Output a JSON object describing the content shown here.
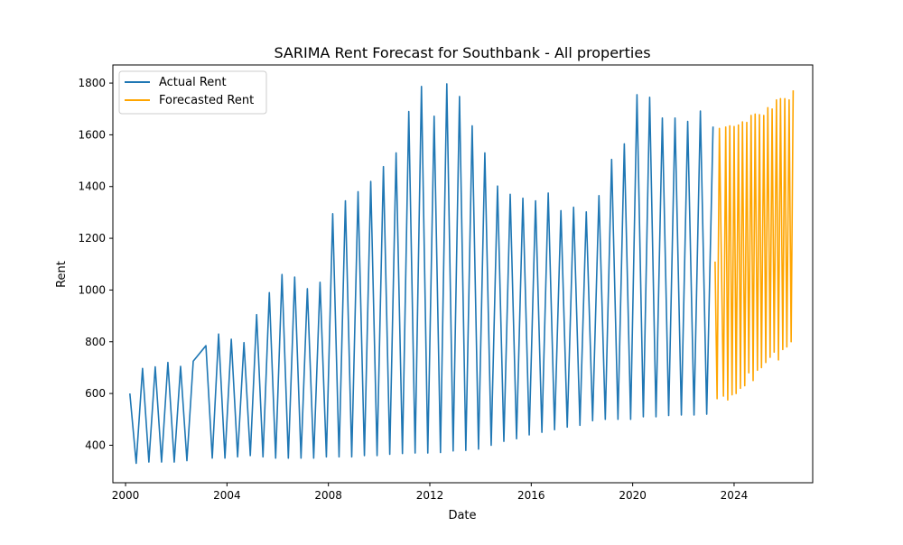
{
  "chart_data": {
    "type": "line",
    "title": "SARIMA Rent Forecast for Southbank - All properties",
    "xlabel": "Date",
    "ylabel": "Rent",
    "xlim": [
      1999.5,
      2027.1
    ],
    "ylim": [
      255,
      1870
    ],
    "xticks": [
      2000,
      2004,
      2008,
      2012,
      2016,
      2020,
      2024
    ],
    "xtick_labels": [
      "2000",
      "2004",
      "2008",
      "2012",
      "2016",
      "2020",
      "2024"
    ],
    "yticks": [
      400,
      600,
      800,
      1000,
      1200,
      1400,
      1600,
      1800
    ],
    "ytick_labels": [
      "400",
      "600",
      "800",
      "1000",
      "1200",
      "1400",
      "1600",
      "1800"
    ],
    "grid": false,
    "legend_position": "top-left",
    "series": [
      {
        "name": "Actual Rent",
        "color": "#1f77b4",
        "points": [
          [
            2000.17,
            600
          ],
          [
            2000.42,
            330
          ],
          [
            2000.67,
            697
          ],
          [
            2000.92,
            335
          ],
          [
            2001.17,
            703
          ],
          [
            2001.42,
            335
          ],
          [
            2001.67,
            720
          ],
          [
            2001.92,
            335
          ],
          [
            2002.17,
            705
          ],
          [
            2002.42,
            340
          ],
          [
            2002.67,
            725
          ],
          [
            2003.17,
            785
          ],
          [
            2003.42,
            350
          ],
          [
            2003.67,
            830
          ],
          [
            2003.92,
            350
          ],
          [
            2004.17,
            810
          ],
          [
            2004.42,
            355
          ],
          [
            2004.67,
            797
          ],
          [
            2004.92,
            360
          ],
          [
            2005.17,
            905
          ],
          [
            2005.42,
            355
          ],
          [
            2005.67,
            990
          ],
          [
            2005.92,
            350
          ],
          [
            2006.17,
            1060
          ],
          [
            2006.42,
            350
          ],
          [
            2006.67,
            1050
          ],
          [
            2006.92,
            350
          ],
          [
            2007.17,
            1005
          ],
          [
            2007.42,
            350
          ],
          [
            2007.67,
            1030
          ],
          [
            2007.92,
            355
          ],
          [
            2008.17,
            1295
          ],
          [
            2008.42,
            355
          ],
          [
            2008.67,
            1345
          ],
          [
            2008.92,
            355
          ],
          [
            2009.17,
            1380
          ],
          [
            2009.42,
            360
          ],
          [
            2009.67,
            1420
          ],
          [
            2009.92,
            360
          ],
          [
            2010.17,
            1477
          ],
          [
            2010.42,
            365
          ],
          [
            2010.67,
            1530
          ],
          [
            2010.92,
            368
          ],
          [
            2011.17,
            1690
          ],
          [
            2011.42,
            370
          ],
          [
            2011.67,
            1787
          ],
          [
            2011.92,
            370
          ],
          [
            2012.17,
            1672
          ],
          [
            2012.42,
            372
          ],
          [
            2012.67,
            1797
          ],
          [
            2012.92,
            378
          ],
          [
            2013.17,
            1748
          ],
          [
            2013.42,
            380
          ],
          [
            2013.67,
            1635
          ],
          [
            2013.92,
            385
          ],
          [
            2014.17,
            1530
          ],
          [
            2014.42,
            400
          ],
          [
            2014.67,
            1402
          ],
          [
            2014.92,
            415
          ],
          [
            2015.17,
            1370
          ],
          [
            2015.42,
            425
          ],
          [
            2015.67,
            1355
          ],
          [
            2015.92,
            440
          ],
          [
            2016.17,
            1345
          ],
          [
            2016.42,
            450
          ],
          [
            2016.67,
            1375
          ],
          [
            2016.92,
            460
          ],
          [
            2017.17,
            1307
          ],
          [
            2017.42,
            470
          ],
          [
            2017.67,
            1320
          ],
          [
            2017.92,
            477
          ],
          [
            2018.17,
            1302
          ],
          [
            2018.42,
            495
          ],
          [
            2018.67,
            1365
          ],
          [
            2018.92,
            500
          ],
          [
            2019.17,
            1505
          ],
          [
            2019.42,
            500
          ],
          [
            2019.67,
            1565
          ],
          [
            2019.92,
            500
          ],
          [
            2020.17,
            1755
          ],
          [
            2020.42,
            510
          ],
          [
            2020.67,
            1745
          ],
          [
            2020.92,
            510
          ],
          [
            2021.17,
            1665
          ],
          [
            2021.42,
            515
          ],
          [
            2021.67,
            1665
          ],
          [
            2021.92,
            517
          ],
          [
            2022.17,
            1652
          ],
          [
            2022.42,
            517
          ],
          [
            2022.67,
            1692
          ],
          [
            2022.92,
            520
          ],
          [
            2023.17,
            1632
          ]
        ]
      },
      {
        "name": "Forecasted Rent",
        "color": "#ffa500",
        "points": [
          [
            2023.25,
            1110
          ],
          [
            2023.33,
            580
          ],
          [
            2023.42,
            1625
          ],
          [
            2023.58,
            590
          ],
          [
            2023.67,
            1630
          ],
          [
            2023.75,
            575
          ],
          [
            2023.83,
            1635
          ],
          [
            2023.92,
            595
          ],
          [
            2024.0,
            1632
          ],
          [
            2024.08,
            600
          ],
          [
            2024.17,
            1638
          ],
          [
            2024.25,
            620
          ],
          [
            2024.33,
            1650
          ],
          [
            2024.42,
            630
          ],
          [
            2024.5,
            1648
          ],
          [
            2024.58,
            680
          ],
          [
            2024.67,
            1675
          ],
          [
            2024.75,
            650
          ],
          [
            2024.83,
            1680
          ],
          [
            2024.92,
            690
          ],
          [
            2025.0,
            1678
          ],
          [
            2025.08,
            700
          ],
          [
            2025.17,
            1675
          ],
          [
            2025.25,
            720
          ],
          [
            2025.33,
            1705
          ],
          [
            2025.42,
            740
          ],
          [
            2025.5,
            1700
          ],
          [
            2025.58,
            760
          ],
          [
            2025.67,
            1735
          ],
          [
            2025.75,
            730
          ],
          [
            2025.83,
            1740
          ],
          [
            2025.92,
            770
          ],
          [
            2026.0,
            1740
          ],
          [
            2026.08,
            780
          ],
          [
            2026.17,
            1735
          ],
          [
            2026.25,
            800
          ],
          [
            2026.33,
            1772
          ]
        ]
      }
    ]
  }
}
